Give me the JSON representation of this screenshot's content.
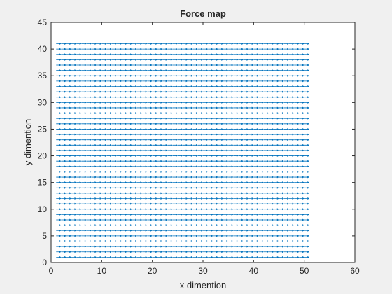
{
  "chart_data": {
    "type": "quiver",
    "title": "Force map",
    "xlabel": "x dimention",
    "ylabel": "y dimention",
    "xlim": [
      0,
      60
    ],
    "ylim": [
      0,
      45
    ],
    "xticks": [
      0,
      10,
      20,
      30,
      40,
      50,
      60
    ],
    "yticks": [
      0,
      5,
      10,
      15,
      20,
      25,
      30,
      35,
      40,
      45
    ],
    "grid": false,
    "box": true,
    "arrow_color": "#0072bd",
    "arrows": {
      "x_range": [
        1,
        51
      ],
      "y_range": [
        1,
        41
      ],
      "spacing": 1,
      "u": 1,
      "v": 0,
      "direction": "positive x"
    }
  }
}
